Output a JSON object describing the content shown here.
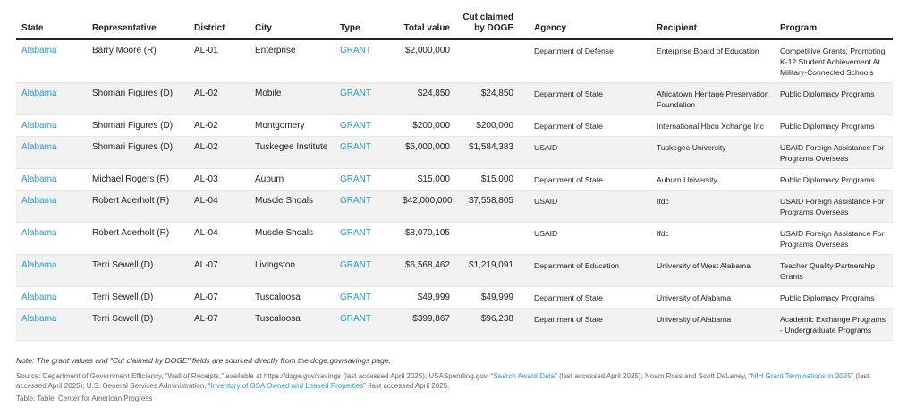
{
  "table": {
    "headers": [
      "State",
      "Representative",
      "District",
      "City",
      "Type",
      "Total value",
      "Cut claimed by DOGE",
      "Agency",
      "Recipient",
      "Program"
    ],
    "rows": [
      [
        "Alabama",
        "Barry Moore (R)",
        "AL-01",
        "Enterprise",
        "GRANT",
        "$2,000,000",
        null,
        "Department of Defense",
        "Enterprise Board of Education",
        "Competitive Grants: Promoting K-12 Student Achievement At Military-Connected Schools"
      ],
      [
        "Alabama",
        "Shomari Figures (D)",
        "AL-02",
        "Mobile",
        "GRANT",
        "$24,850",
        "$24,850",
        "Department of State",
        "Africatown Heritage Preservation Foundation",
        "Public Diplomacy Programs"
      ],
      [
        "Alabama",
        "Shomari Figures (D)",
        "AL-02",
        "Montgomery",
        "GRANT",
        "$200,000",
        "$200,000",
        "Department of State",
        "International Hbcu Xchange Inc",
        "Public Diplomacy Programs"
      ],
      [
        "Alabama",
        "Shomari Figures (D)",
        "AL-02",
        "Tuskegee Institute",
        "GRANT",
        "$5,000,000",
        "$1,584,383",
        "USAID",
        "Tuskegee University",
        "USAID Foreign Assistance For Programs Overseas"
      ],
      [
        "Alabama",
        "Michael Rogers (R)",
        "AL-03",
        "Auburn",
        "GRANT",
        "$15,000",
        "$15,000",
        "Department of State",
        "Auburn University",
        "Public Diplomacy Programs"
      ],
      [
        "Alabama",
        "Robert Aderholt (R)",
        "AL-04",
        "Muscle Shoals",
        "GRANT",
        "$42,000,000",
        "$7,558,805",
        "USAID",
        "Ifdc",
        "USAID Foreign Assistance For Programs Overseas"
      ],
      [
        "Alabama",
        "Robert Aderholt (R)",
        "AL-04",
        "Muscle Shoals",
        "GRANT",
        "$8,070,105",
        null,
        "USAID",
        "Ifdc",
        "USAID Foreign Assistance For Programs Overseas"
      ],
      [
        "Alabama",
        "Terri Sewell (D)",
        "AL-07",
        "Livingston",
        "GRANT",
        "$6,568,462",
        "$1,219,091",
        "Department of Education",
        "University of West Alabama",
        "Teacher Quality Partnership Grants"
      ],
      [
        "Alabama",
        "Terri Sewell (D)",
        "AL-07",
        "Tuscaloosa",
        "GRANT",
        "$49,999",
        "$49,999",
        "Department of State",
        "University of Alabama",
        "Public Diplomacy Programs"
      ],
      [
        "Alabama",
        "Terri Sewell (D)",
        "AL-07",
        "Tuscaloosa",
        "GRANT",
        "$399,867",
        "$96,238",
        "Department of State",
        "University of Alabama",
        "Academic Exchange Programs - Undergraduate Programs"
      ]
    ]
  },
  "note": "Note: The grant values and \"Cut claimed by DOGE\" fields are sourced directly from the doge.gov/savings page.",
  "source": [
    "Source: Department of Government Efficiency, “Wall of Receipts,” available at https://doge.gov/savings (last accessed April 2025); USASpending.gov, “",
    {
      "text": "Search Award Data",
      "link": true
    },
    "” (last accessed April 2025); Noam Ross and Scott DeLaney, “",
    {
      "text": "NIH Grant Terminations in 2025",
      "link": true
    },
    "” (last accessed April 2025); U.S. General Services Administration, “",
    {
      "text": "Inventory of GSA Owned and Leased Properties",
      "link": true
    },
    "” (last accessed April 2025."
  ],
  "credit": "Table: Table: Center for American Progress"
}
